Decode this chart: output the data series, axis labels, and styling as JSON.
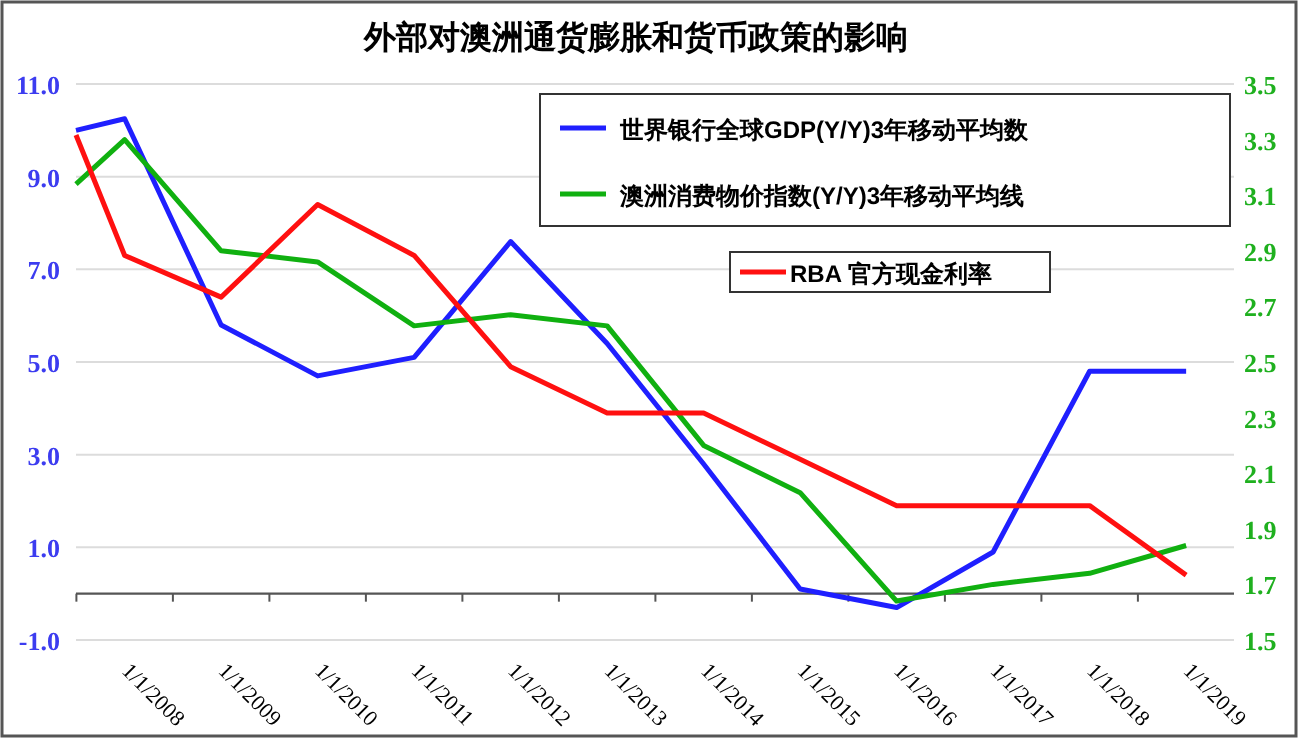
{
  "chart_data": {
    "type": "line",
    "title": "外部对澳洲通货膨胀和货币政策的影响",
    "x": [
      "2007-07-01",
      "2008-01-01",
      "2009-01-01",
      "2010-01-01",
      "2011-01-01",
      "2012-01-01",
      "2013-01-01",
      "2014-01-01",
      "2015-01-01",
      "2016-01-01",
      "2017-01-01",
      "2018-01-01",
      "2019-01-01"
    ],
    "xlim": [
      "2007-07-01",
      "2019-07-01"
    ],
    "xticks": [
      {
        "value": "2008-01-01",
        "label": "1/1/2008"
      },
      {
        "value": "2009-01-01",
        "label": "1/1/2009"
      },
      {
        "value": "2010-01-01",
        "label": "1/1/2010"
      },
      {
        "value": "2011-01-01",
        "label": "1/1/2011"
      },
      {
        "value": "2012-01-01",
        "label": "1/1/2012"
      },
      {
        "value": "2013-01-01",
        "label": "1/1/2013"
      },
      {
        "value": "2014-01-01",
        "label": "1/1/2014"
      },
      {
        "value": "2015-01-01",
        "label": "1/1/2015"
      },
      {
        "value": "2016-01-01",
        "label": "1/1/2016"
      },
      {
        "value": "2017-01-01",
        "label": "1/1/2017"
      },
      {
        "value": "2018-01-01",
        "label": "1/1/2018"
      },
      {
        "value": "2019-01-01",
        "label": "1/1/2019"
      }
    ],
    "ylim": [
      -1,
      11
    ],
    "yticks": [
      {
        "value": -1,
        "label": "-1.0"
      },
      {
        "value": 1,
        "label": "1.0"
      },
      {
        "value": 3,
        "label": "3.0"
      },
      {
        "value": 5,
        "label": "5.0"
      },
      {
        "value": 7,
        "label": "7.0"
      },
      {
        "value": 9,
        "label": "9.0"
      },
      {
        "value": 11,
        "label": "11.0"
      }
    ],
    "y2lim": [
      1.5,
      3.5
    ],
    "y2ticks": [
      1.5,
      1.7,
      1.9,
      2.1,
      2.3,
      2.5,
      2.7,
      2.9,
      3.1,
      3.3,
      3.5
    ],
    "grid": "y",
    "legend": "top right",
    "series": [
      {
        "name": "世界银行全球GDP(Y/Y)3年移动平均数",
        "color": "#1f1fff",
        "values": [
          10.0,
          10.25,
          5.8,
          4.7,
          5.1,
          7.6,
          5.4,
          2.8,
          0.1,
          -0.3,
          0.9,
          4.8,
          4.8
        ]
      },
      {
        "name": "澳洲消费物价指数(Y/Y)3年移动平均线",
        "color": "#10b010",
        "axis": "y2",
        "values": [
          3.14,
          3.3,
          2.9,
          2.86,
          2.63,
          2.67,
          2.63,
          2.2,
          2.03,
          1.64,
          1.7,
          1.74,
          1.84
        ]
      },
      {
        "name": "RBA 官方现金利率",
        "color": "#ff1010",
        "values": [
          9.9,
          7.3,
          6.4,
          8.4,
          7.3,
          4.9,
          3.9,
          3.9,
          2.9,
          1.9,
          1.9,
          1.9,
          0.4
        ]
      }
    ]
  }
}
